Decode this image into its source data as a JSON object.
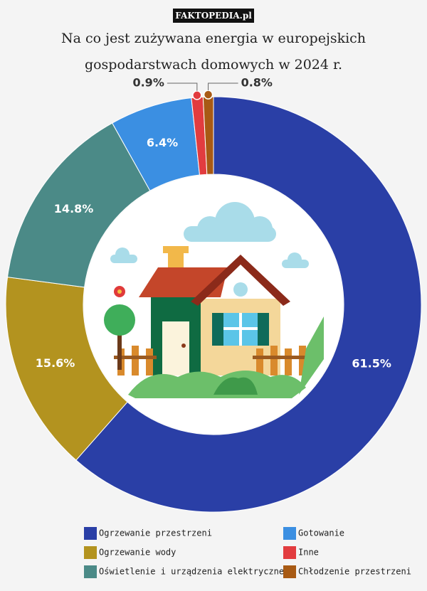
{
  "watermark": "FAKTOPEDIA.pl",
  "chart_data": {
    "type": "donut",
    "title": "Na co jest zużywana energia w europejskich gospodarstwach domowych w 2024 r.",
    "categories": [
      "Ogrzewanie przestrzeni",
      "Ogrzewanie wody",
      "Oświetlenie i urządzenia elektryczne",
      "Gotowanie",
      "Inne",
      "Chłodzenie przestrzeni"
    ],
    "values": [
      61.5,
      15.6,
      14.8,
      6.4,
      0.9,
      0.8
    ],
    "value_labels": [
      "61.5%",
      "15.6%",
      "14.8%",
      "6.4%",
      "0.9%",
      "0.8%"
    ],
    "colors": [
      "#2a3fa6",
      "#b3931f",
      "#4b8a87",
      "#3b8fe2",
      "#e23c3f",
      "#a85a14"
    ]
  }
}
